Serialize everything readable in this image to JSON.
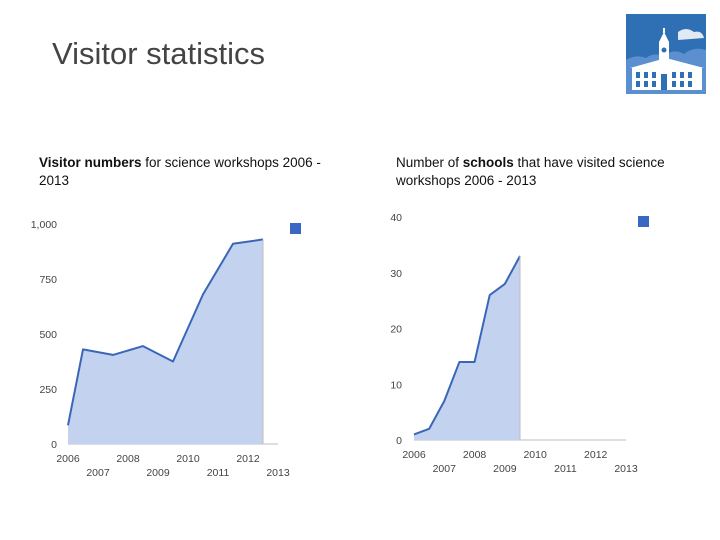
{
  "slide": {
    "title": "Visitor statistics"
  },
  "logo": {
    "icon": "town-hall-building-icon",
    "colors": {
      "sky": "#2f6fb4",
      "building": "#ffffff"
    }
  },
  "colors": {
    "line": "#3a66b8",
    "fill": "#c3d3ef",
    "axis": "#bdbdbd",
    "legend_marker": "#3a66c4"
  },
  "chart_data": [
    {
      "type": "area",
      "caption_bold": "Visitor numbers",
      "caption_rest": " for science workshops 2006 - 2013",
      "x": [
        2006,
        2007,
        2008,
        2009,
        2010,
        2011,
        2012,
        2013
      ],
      "x_labels": [
        "2006",
        "2007",
        "2008",
        "2009",
        "2010",
        "2011",
        "2012",
        "2013"
      ],
      "points": [
        [
          2006,
          85
        ],
        [
          2006.5,
          430
        ],
        [
          2007.5,
          405
        ],
        [
          2008.5,
          445
        ],
        [
          2009.5,
          375
        ],
        [
          2010.5,
          680
        ],
        [
          2011.5,
          910
        ],
        [
          2012.5,
          930
        ]
      ],
      "ylim": [
        0,
        1000
      ],
      "y_ticks": [
        0,
        250,
        500,
        750,
        1000
      ],
      "y_tick_labels": [
        "0",
        "250",
        "500",
        "750",
        "1,000"
      ],
      "legend": "top-right"
    },
    {
      "type": "area",
      "caption_pre": "Number of ",
      "caption_bold": "schools",
      "caption_rest": " that have visited science workshops 2006 - 2013",
      "x": [
        2006,
        2007,
        2008,
        2009,
        2010,
        2011,
        2012,
        2013
      ],
      "x_labels": [
        "2006",
        "2007",
        "2008",
        "2009",
        "2010",
        "2011",
        "2012",
        "2013"
      ],
      "points": [
        [
          2006,
          1
        ],
        [
          2006.5,
          2
        ],
        [
          2007,
          7
        ],
        [
          2007.5,
          14
        ],
        [
          2008,
          14
        ],
        [
          2008.5,
          26
        ],
        [
          2009,
          28
        ],
        [
          2009.5,
          33
        ]
      ],
      "ylim": [
        0,
        40
      ],
      "y_ticks": [
        0,
        10,
        20,
        30,
        40
      ],
      "y_tick_labels": [
        "0",
        "10",
        "20",
        "30",
        "40"
      ],
      "legend": "top-right"
    }
  ]
}
